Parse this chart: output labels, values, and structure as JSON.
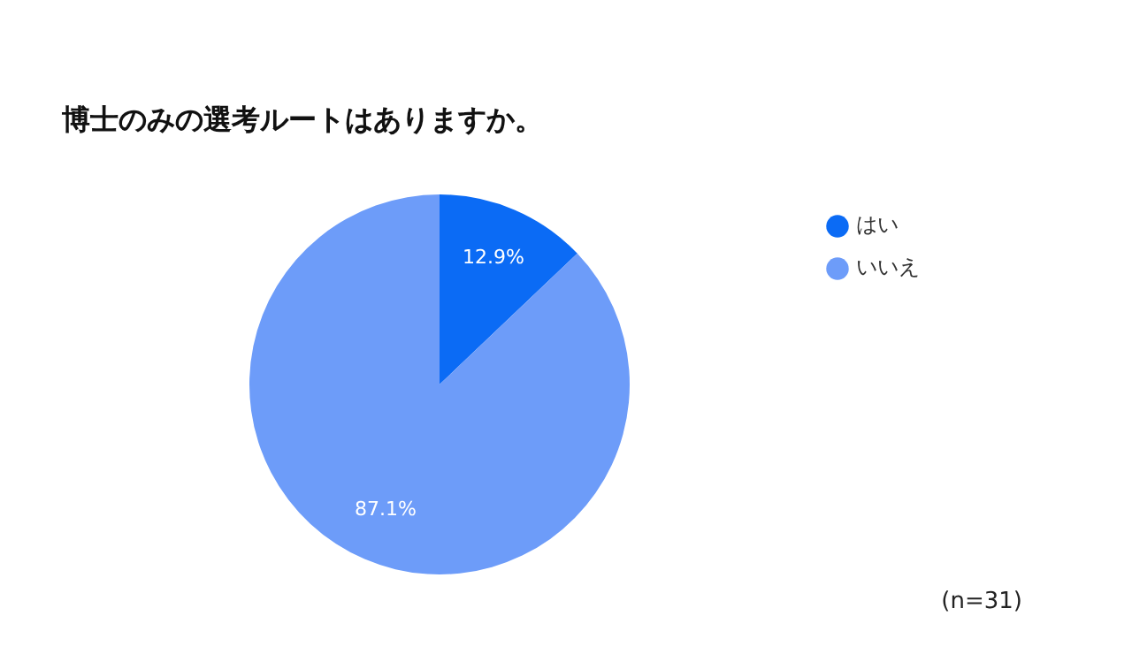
{
  "chart_data": {
    "type": "pie",
    "title": "博士のみの選考ルートはありますか。",
    "categories": [
      "はい",
      "いいえ"
    ],
    "values": [
      12.9,
      87.1
    ],
    "value_labels": [
      "12.9%",
      "87.1%"
    ],
    "colors": [
      "#0b6bf5",
      "#6d9cf9"
    ],
    "legend": "right",
    "annotations": [
      "(n=31)"
    ]
  }
}
